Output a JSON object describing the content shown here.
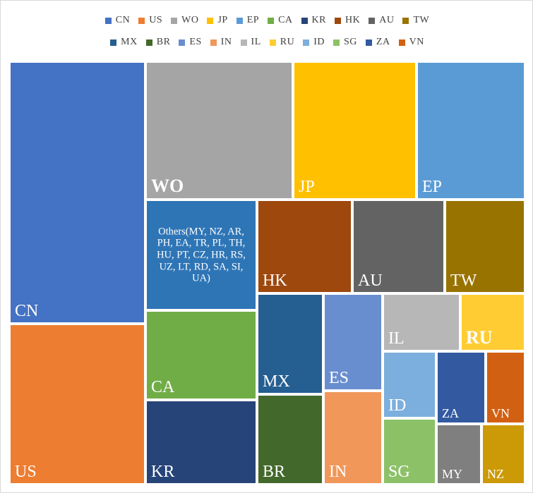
{
  "chart_data": {
    "type": "treemap",
    "legend_position": "top",
    "legend": [
      {
        "name": "CN",
        "color": "#4472C4"
      },
      {
        "name": "US",
        "color": "#ED7D31"
      },
      {
        "name": "WO",
        "color": "#A5A5A5"
      },
      {
        "name": "JP",
        "color": "#FFC000"
      },
      {
        "name": "EP",
        "color": "#5B9BD5"
      },
      {
        "name": "CA",
        "color": "#70AD47"
      },
      {
        "name": "KR",
        "color": "#264478"
      },
      {
        "name": "HK",
        "color": "#9E480E"
      },
      {
        "name": "AU",
        "color": "#636363"
      },
      {
        "name": "TW",
        "color": "#997300"
      },
      {
        "name": "MX",
        "color": "#255E91"
      },
      {
        "name": "BR",
        "color": "#43682B"
      },
      {
        "name": "ES",
        "color": "#698ED0"
      },
      {
        "name": "IN",
        "color": "#F1975A"
      },
      {
        "name": "IL",
        "color": "#B7B7B7"
      },
      {
        "name": "RU",
        "color": "#FFCD33"
      },
      {
        "name": "ID",
        "color": "#7CAFDD"
      },
      {
        "name": "SG",
        "color": "#8CC168"
      },
      {
        "name": "ZA",
        "color": "#335AA1"
      },
      {
        "name": "VN",
        "color": "#D26012"
      }
    ],
    "tiles": [
      {
        "label": "CN",
        "color": "#4472C4"
      },
      {
        "label": "US",
        "color": "#ED7D31"
      },
      {
        "label": "WO",
        "color": "#A5A5A5"
      },
      {
        "label": "JP",
        "color": "#FFC000"
      },
      {
        "label": "EP",
        "color": "#5B9BD5"
      },
      {
        "label": "Others(MY, NZ, AR, PH, EA, TR, PL, TH, HU, PT, CZ, HR, RS, UZ, LT, RD, SA, SI, UA)",
        "color": "#2E75B6"
      },
      {
        "label": "CA",
        "color": "#70AD47"
      },
      {
        "label": "KR",
        "color": "#264478"
      },
      {
        "label": "HK",
        "color": "#9E480E"
      },
      {
        "label": "AU",
        "color": "#636363"
      },
      {
        "label": "TW",
        "color": "#997300"
      },
      {
        "label": "MX",
        "color": "#255E91"
      },
      {
        "label": "BR",
        "color": "#43682B"
      },
      {
        "label": "ES",
        "color": "#698ED0"
      },
      {
        "label": "IN",
        "color": "#F1975A"
      },
      {
        "label": "IL",
        "color": "#B7B7B7"
      },
      {
        "label": "RU",
        "color": "#FFCD33"
      },
      {
        "label": "ID",
        "color": "#7CAFDD"
      },
      {
        "label": "SG",
        "color": "#8CC168"
      },
      {
        "label": "ZA",
        "color": "#335AA1"
      },
      {
        "label": "VN",
        "color": "#D26012"
      },
      {
        "label": "MY",
        "color": "#7F7F7F"
      },
      {
        "label": "NZ",
        "color": "#CC9A06"
      }
    ]
  }
}
